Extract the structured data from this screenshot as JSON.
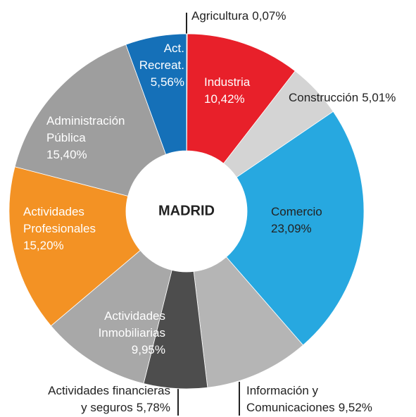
{
  "chart_data": {
    "type": "donut",
    "center_label": "MADRID",
    "categories": [
      [
        "Agricultura"
      ],
      [
        "Industria"
      ],
      [
        "Construcción"
      ],
      [
        "Comercio"
      ],
      [
        "Información y",
        "Comunicaciones"
      ],
      [
        "Actividades financieras",
        "y seguros"
      ],
      [
        "Actividades",
        "Inmobiliarias"
      ],
      [
        "Actividades",
        "Profesionales"
      ],
      [
        "Administración",
        "Pública"
      ],
      [
        "Act.",
        "Recreat."
      ]
    ],
    "values": [
      0.07,
      10.42,
      5.01,
      23.09,
      9.52,
      5.78,
      9.95,
      15.2,
      15.4,
      5.56
    ],
    "value_labels": [
      "0,07%",
      "10,42%",
      "5,01%",
      "23,09%",
      "9,52%",
      "5,78%",
      "9,95%",
      "15,20%",
      "15,40%",
      "5,56%"
    ],
    "colors": [
      "#333333",
      "#e8202a",
      "#d4d4d4",
      "#27a8e0",
      "#b5b5b5",
      "#4d4d4d",
      "#a8a8a8",
      "#f39224",
      "#9e9e9e",
      "#1570b8"
    ]
  }
}
